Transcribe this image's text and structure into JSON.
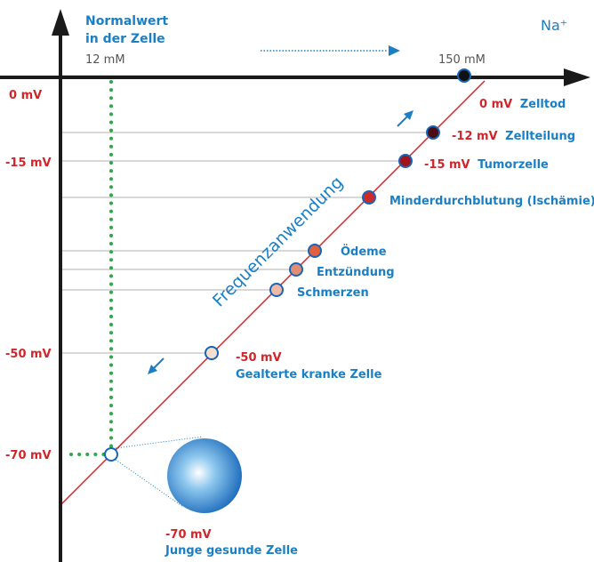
{
  "colors": {
    "label_blue": "#1a7fc4",
    "mv_red": "#d0262b",
    "reference_green": "#2ea84a",
    "axis": "#1a1a1a",
    "guide_gray": "#aaaaaa"
  },
  "header": {
    "normal_line1": "Normalwert",
    "normal_line2": "in der Zelle",
    "ion": "Na⁺",
    "low_conc": "12 mM",
    "high_conc": "150 mM"
  },
  "arrow_label": "Frequenzanwendung",
  "y_ticks": [
    {
      "label": "0 mV",
      "mv": 0
    },
    {
      "label": "-15 mV",
      "mv": -15
    },
    {
      "label": "-50 mV",
      "mv": -50
    },
    {
      "label": "-70 mV",
      "mv": -70
    }
  ],
  "states": [
    {
      "mv_text": "0 mV",
      "name": "Zelltod",
      "fill": "#111111"
    },
    {
      "mv_text": "-12 mV",
      "name": "Zellteilung",
      "fill": "#4a0d14"
    },
    {
      "mv_text": "-15 mV",
      "name": "Tumorzelle",
      "fill": "#a0141c"
    },
    {
      "mv_text": "",
      "name": "Minderdurchblutung (Ischämie)",
      "fill": "#cf2a2a"
    },
    {
      "mv_text": "",
      "name": "Ödeme",
      "fill": "#e0603f"
    },
    {
      "mv_text": "",
      "name": "Entzündung",
      "fill": "#e08e76"
    },
    {
      "mv_text": "",
      "name": "Schmerzen",
      "fill": "#f0b9a6"
    },
    {
      "mv_text": "-50 mV",
      "name": "Gealterte kranke Zelle",
      "fill": "#f6dfcf"
    },
    {
      "mv_text": "-70 mV",
      "name": "Junge gesunde Zelle",
      "fill": "#ffffff"
    }
  ]
}
